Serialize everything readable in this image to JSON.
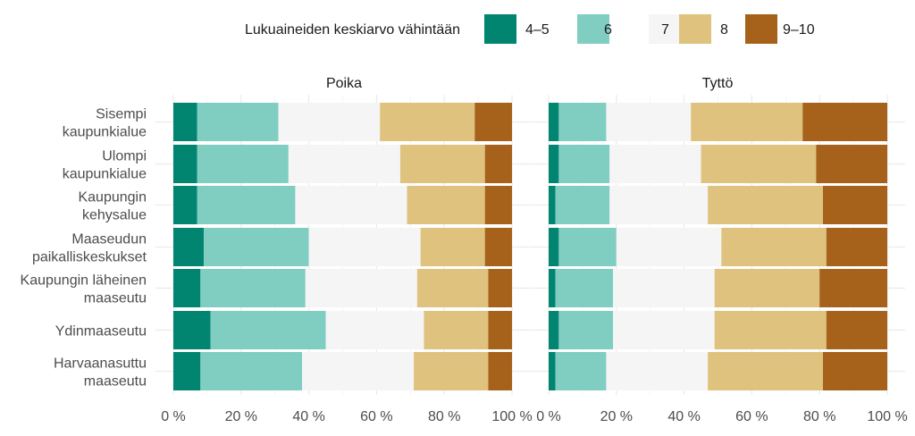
{
  "chart_data": {
    "type": "bar",
    "orientation": "horizontal",
    "stacked": true,
    "legend": {
      "title": "Lukuaineiden keskiarvo vähintään",
      "placement": "top"
    },
    "facets": [
      "Poika",
      "Tyttö"
    ],
    "categories": [
      [
        "Sisempi",
        "kaupunkialue"
      ],
      [
        "Ulompi",
        "kaupunkialue"
      ],
      [
        "Kaupungin",
        "kehysalue"
      ],
      [
        "Maaseudun",
        "paikalliskeskukset"
      ],
      [
        "Kaupungin läheinen",
        "maaseutu"
      ],
      [
        "Ydinmaaseutu"
      ],
      [
        "Harvaanasuttu",
        "maaseutu"
      ]
    ],
    "series_meta": [
      {
        "name": "4–5",
        "color": "#018571"
      },
      {
        "name": "6",
        "color": "#80cdc1"
      },
      {
        "name": "7",
        "color": "#f5f5f5"
      },
      {
        "name": "8",
        "color": "#dfc27d"
      },
      {
        "name": "9–10",
        "color": "#a6611a"
      }
    ],
    "values": {
      "Poika": [
        [
          7,
          24,
          30,
          28,
          11
        ],
        [
          7,
          27,
          33,
          25,
          8
        ],
        [
          7,
          29,
          33,
          23,
          8
        ],
        [
          9,
          31,
          33,
          19,
          8
        ],
        [
          8,
          31,
          33,
          21,
          7
        ],
        [
          11,
          34,
          29,
          19,
          7
        ],
        [
          8,
          30,
          33,
          22,
          7
        ]
      ],
      "Tyttö": [
        [
          3,
          14,
          25,
          33,
          25
        ],
        [
          3,
          15,
          27,
          34,
          21
        ],
        [
          2,
          16,
          29,
          34,
          19
        ],
        [
          3,
          17,
          31,
          31,
          18
        ],
        [
          2,
          17,
          30,
          31,
          20
        ],
        [
          3,
          16,
          30,
          33,
          18
        ],
        [
          2,
          15,
          30,
          34,
          19
        ]
      ]
    },
    "x_ticks": [
      "0 %",
      "20 %",
      "40 %",
      "60 %",
      "80 %",
      "100 %"
    ],
    "x_tick_values": [
      0,
      20,
      40,
      60,
      80,
      100
    ],
    "xlim": [
      0,
      100
    ],
    "grid": true
  }
}
